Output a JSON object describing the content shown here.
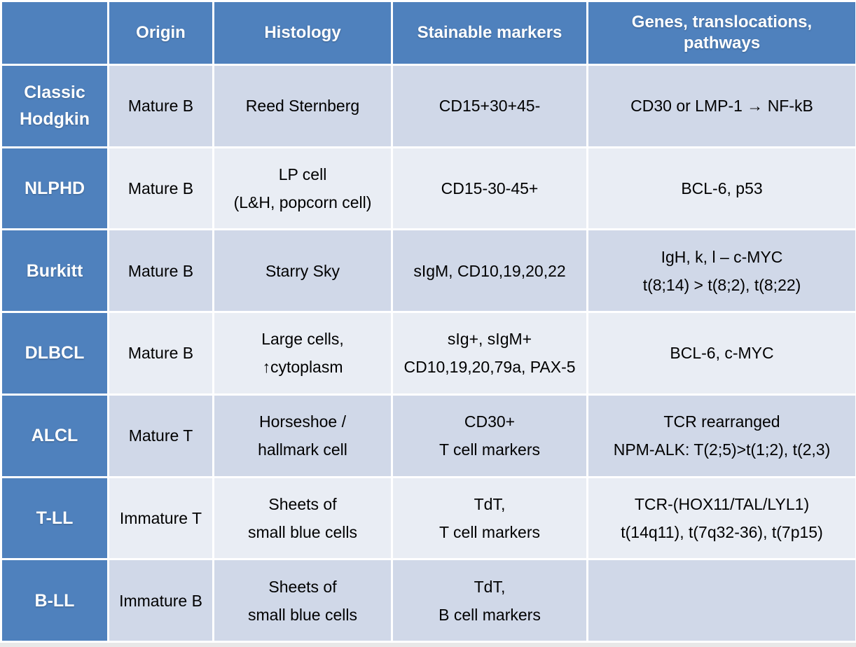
{
  "header": {
    "corner": "",
    "columns": [
      "Origin",
      "Histology",
      "Stainable markers",
      "Genes, translocations, pathways"
    ],
    "genes_lines": [
      "Genes, translocations,",
      "pathways"
    ]
  },
  "rows": [
    {
      "name_lines": [
        "Classic",
        "Hodgkin"
      ],
      "origin": "Mature B",
      "histology_lines": [
        "Reed Sternberg"
      ],
      "markers_lines": [
        "CD15+30+45-"
      ],
      "genes_lines": [
        "CD30 or LMP-1 → NF-kB"
      ]
    },
    {
      "name_lines": [
        "NLPHD"
      ],
      "origin": "Mature B",
      "histology_lines": [
        "LP cell",
        "(L&H, popcorn cell)"
      ],
      "markers_lines": [
        "CD15-30-45+"
      ],
      "genes_lines": [
        "BCL-6, p53"
      ]
    },
    {
      "name_lines": [
        "Burkitt"
      ],
      "origin": "Mature B",
      "histology_lines": [
        "Starry Sky"
      ],
      "markers_lines": [
        "sIgM, CD10,19,20,22"
      ],
      "genes_lines": [
        "IgH, k, l – c-MYC",
        "t(8;14) > t(8;2), t(8;22)"
      ]
    },
    {
      "name_lines": [
        "DLBCL"
      ],
      "origin": "Mature B",
      "histology_lines": [
        "Large cells,",
        "↑cytoplasm"
      ],
      "markers_lines": [
        "sIg+, sIgM+",
        "CD10,19,20,79a, PAX-5"
      ],
      "genes_lines": [
        "BCL-6, c-MYC"
      ]
    },
    {
      "name_lines": [
        "ALCL"
      ],
      "origin": "Mature T",
      "histology_lines": [
        "Horseshoe /",
        "hallmark cell"
      ],
      "markers_lines": [
        "CD30+",
        "T cell markers"
      ],
      "genes_lines": [
        "TCR rearranged",
        "NPM-ALK:  T(2;5)>t(1;2), t(2,3)"
      ]
    },
    {
      "name_lines": [
        "T-LL"
      ],
      "origin": "Immature T",
      "histology_lines": [
        "Sheets of",
        "small blue cells"
      ],
      "markers_lines": [
        "TdT,",
        "T cell markers"
      ],
      "genes_lines": [
        "TCR-(HOX11/TAL/LYL1)",
        "t(14q11), t(7q32-36), t(7p15)"
      ]
    },
    {
      "name_lines": [
        "B-LL"
      ],
      "origin": "Immature B",
      "histology_lines": [
        "Sheets of",
        "small blue cells"
      ],
      "markers_lines": [
        "TdT,",
        "B cell markers"
      ],
      "genes_lines": []
    }
  ],
  "colors": {
    "header_blue": "#4f81bd",
    "row_dark": "#d0d8e8",
    "row_light": "#e9edf4"
  }
}
